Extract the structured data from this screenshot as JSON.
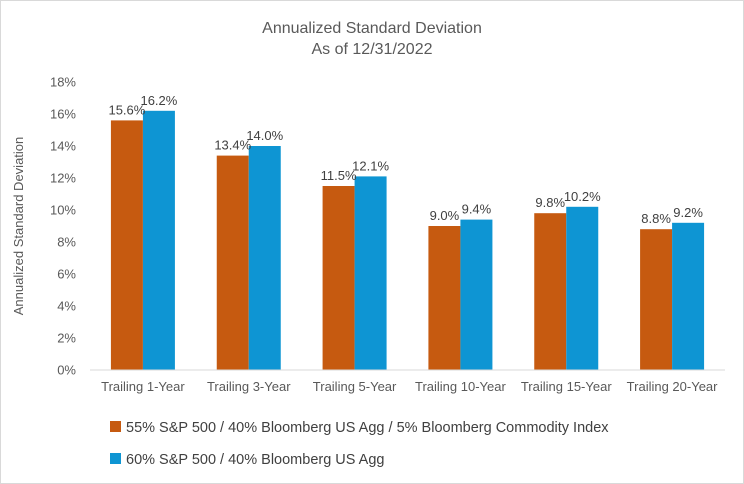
{
  "chart_data": {
    "type": "bar",
    "title": "Annualized Standard Deviation",
    "subtitle": "As of 12/31/2022",
    "ylabel": "Annualized Standard Deviation",
    "xlabel": "",
    "ylim": [
      0,
      18
    ],
    "ytick_step": 2,
    "ytick_labels": [
      "0%",
      "2%",
      "4%",
      "6%",
      "8%",
      "10%",
      "12%",
      "14%",
      "16%",
      "18%"
    ],
    "categories": [
      "Trailing 1-Year",
      "Trailing 3-Year",
      "Trailing 5-Year",
      "Trailing 10-Year",
      "Trailing 15-Year",
      "Trailing 20-Year"
    ],
    "series": [
      {
        "name": "55% S&P 500 / 40% Bloomberg US Agg / 5% Bloomberg Commodity Index",
        "color": "#c65a10",
        "values": [
          15.6,
          13.4,
          11.5,
          9.0,
          9.8,
          8.8
        ],
        "labels": [
          "15.6%",
          "13.4%",
          "11.5%",
          "9.0%",
          "9.8%",
          "8.8%"
        ]
      },
      {
        "name": "60% S&P 500 / 40% Bloomberg US Agg",
        "color": "#0e95d3",
        "values": [
          16.2,
          14.0,
          12.1,
          9.4,
          10.2,
          9.2
        ],
        "labels": [
          "16.2%",
          "14.0%",
          "12.1%",
          "9.4%",
          "10.2%",
          "9.2%"
        ]
      }
    ],
    "grid": false,
    "legend_position": "bottom-left"
  }
}
